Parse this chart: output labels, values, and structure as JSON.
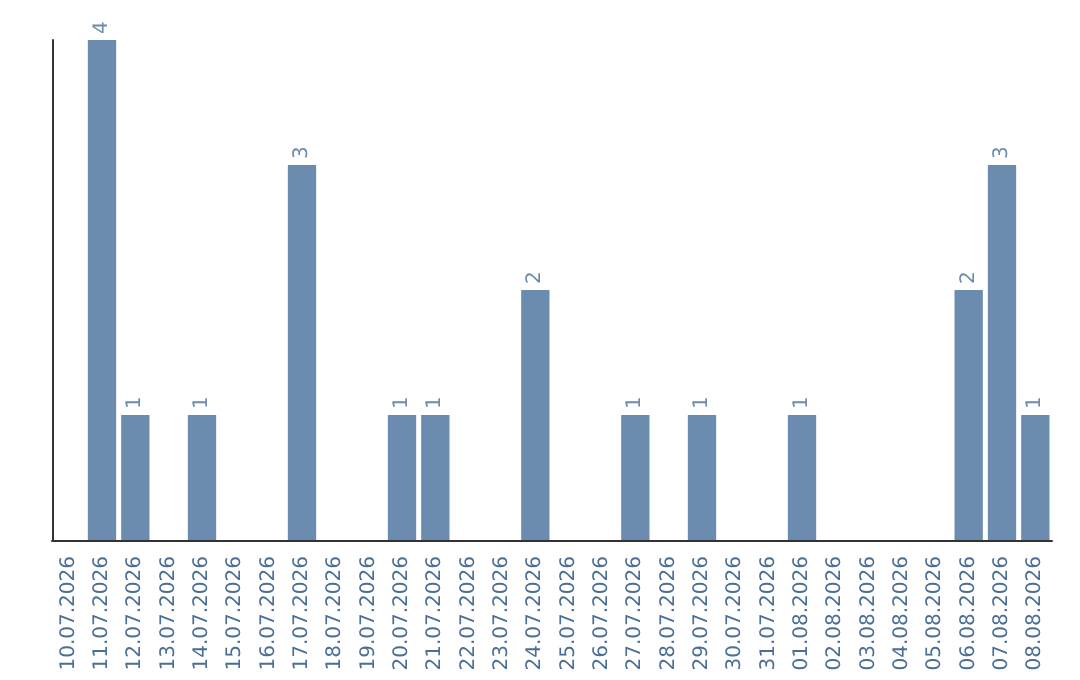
{
  "chart_data": {
    "type": "bar",
    "categories": [
      "10.07.2026",
      "11.07.2026",
      "12.07.2026",
      "13.07.2026",
      "14.07.2026",
      "15.07.2026",
      "16.07.2026",
      "17.07.2026",
      "18.07.2026",
      "19.07.2026",
      "20.07.2026",
      "21.07.2026",
      "22.07.2026",
      "23.07.2026",
      "24.07.2026",
      "25.07.2026",
      "26.07.2026",
      "27.07.2026",
      "28.07.2026",
      "29.07.2026",
      "30.07.2026",
      "31.07.2026",
      "01.08.2026",
      "02.08.2026",
      "03.08.2026",
      "04.08.2026",
      "05.08.2026",
      "06.08.2026",
      "07.08.2026",
      "08.08.2026"
    ],
    "values": [
      0,
      4,
      1,
      0,
      1,
      0,
      0,
      3,
      0,
      0,
      1,
      1,
      0,
      0,
      2,
      0,
      0,
      1,
      0,
      1,
      0,
      0,
      1,
      0,
      0,
      0,
      0,
      2,
      3,
      1
    ],
    "value_labels": [
      null,
      "4",
      "1",
      null,
      "1",
      null,
      null,
      "3",
      null,
      null,
      "1",
      "1",
      null,
      null,
      "2",
      null,
      null,
      "1",
      null,
      "1",
      null,
      null,
      "1",
      null,
      null,
      null,
      null,
      "2",
      "3",
      "1"
    ],
    "color": "#6b8cae",
    "grid": false
  }
}
